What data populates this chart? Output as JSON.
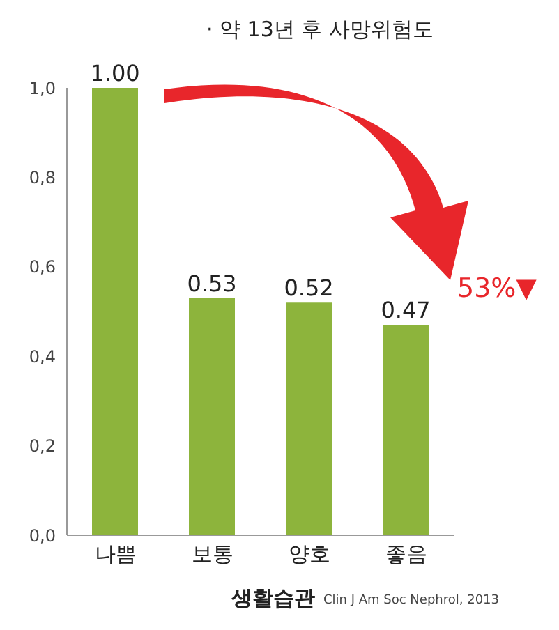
{
  "chart_data": {
    "type": "bar",
    "title": "· 약 13년 후 사망위험도",
    "xlabel": "생활습관",
    "categories": [
      "나쁨",
      "보통",
      "양호",
      "좋음"
    ],
    "values": [
      1.0,
      0.53,
      0.52,
      0.47
    ],
    "value_labels": [
      "1.00",
      "0.53",
      "0.52",
      "0.47"
    ],
    "color": "#8db43c",
    "ylim": [
      0,
      1
    ],
    "yticks": [
      {
        "value": 0,
        "label": "0,0"
      },
      {
        "value": 0.2,
        "label": "0,2"
      },
      {
        "value": 0.4,
        "label": "0,4"
      },
      {
        "value": 0.6,
        "label": "0,6"
      },
      {
        "value": 0.8,
        "label": "0,8"
      },
      {
        "value": 1,
        "label": "1,0"
      }
    ],
    "grid": false,
    "annotations": [
      "53%▼",
      "Clin J Am Soc Nephrol, 2013"
    ]
  }
}
